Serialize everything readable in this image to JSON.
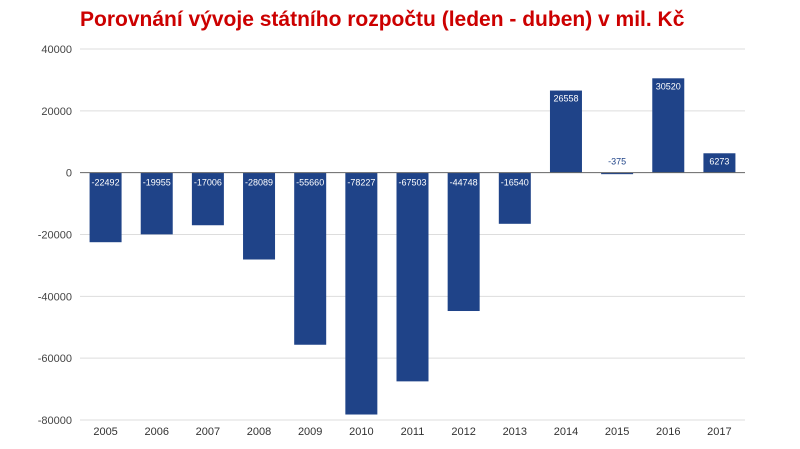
{
  "chart_data": {
    "type": "bar",
    "title": "Porovnání vývoje státního rozpočtu (leden - duben) v mil. Kč",
    "categories": [
      "2005",
      "2006",
      "2007",
      "2008",
      "2009",
      "2010",
      "2011",
      "2012",
      "2013",
      "2014",
      "2015",
      "2016",
      "2017"
    ],
    "values": [
      -22492,
      -19955,
      -17006,
      -28089,
      -55660,
      -78227,
      -67503,
      -44748,
      -16540,
      26558,
      -375,
      30520,
      6273
    ],
    "labels": [
      "-22492",
      "-19955",
      "-17006",
      "-28089",
      "-55660",
      "-78227",
      "-67503",
      "-44748",
      "-16540",
      "26558",
      "-375",
      "30520",
      "6273"
    ],
    "yticks": [
      "40000",
      "20000",
      "0",
      "-20000",
      "-40000",
      "-60000",
      "-80000"
    ],
    "ytick_values": [
      40000,
      20000,
      0,
      -20000,
      -40000,
      -60000,
      -80000
    ],
    "ylim": [
      -80000,
      40000
    ],
    "grid": true,
    "colors": {
      "bar": "#1f4388",
      "title": "#cc0000",
      "grid": "#dddddd",
      "axis": "#666666"
    }
  }
}
